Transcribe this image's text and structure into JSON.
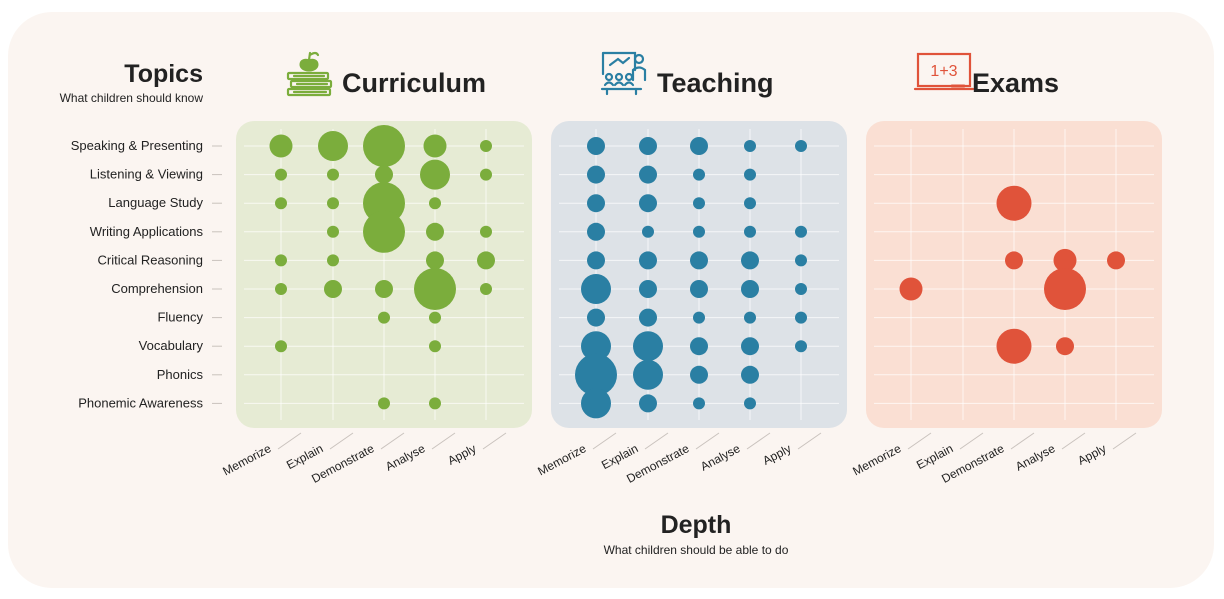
{
  "colors": {
    "background": "#fbf5f1",
    "curriculum_panel": "#e6ebd4",
    "curriculum_dot": "#7bad3c",
    "teaching_panel": "#dde2e7",
    "teaching_dot": "#2a7fa3",
    "exams_panel": "#fadfd3",
    "exams_dot": "#e0533a",
    "text": "#222222",
    "tick_line": "#c9c2bd"
  },
  "y_axis": {
    "title": "Topics",
    "subtitle": "What children should know"
  },
  "x_axis": {
    "title": "Depth",
    "subtitle": "What children should be able to do"
  },
  "chart_data": {
    "type": "scatter",
    "encoding": "bubble size = relative emphasis",
    "categories_y": [
      "Speaking & Presenting",
      "Listening & Viewing",
      "Language Study",
      "Writing Applications",
      "Critical Reasoning",
      "Comprehension",
      "Fluency",
      "Vocabulary",
      "Phonics",
      "Phonemic Awareness"
    ],
    "categories_x": [
      "Memorize",
      "Explain",
      "Demonstrate",
      "Analyse",
      "Apply"
    ],
    "grid": true,
    "panels": [
      {
        "id": "curriculum",
        "title": "Curriculum",
        "icon": "books-apple-icon",
        "sizes": [
          [
            3,
            4,
            6,
            3,
            1
          ],
          [
            1,
            1,
            2,
            4,
            1
          ],
          [
            1,
            1,
            6,
            1,
            0
          ],
          [
            0,
            1,
            6,
            2,
            1
          ],
          [
            1,
            1,
            0,
            2,
            2
          ],
          [
            1,
            2,
            2,
            6,
            1
          ],
          [
            0,
            0,
            1,
            1,
            0
          ],
          [
            1,
            0,
            0,
            1,
            0
          ],
          [
            0,
            0,
            0,
            0,
            0
          ],
          [
            0,
            0,
            1,
            1,
            0
          ]
        ]
      },
      {
        "id": "teaching",
        "title": "Teaching",
        "icon": "classroom-icon",
        "sizes": [
          [
            2,
            2,
            2,
            1,
            1
          ],
          [
            2,
            2,
            1,
            1,
            0
          ],
          [
            2,
            2,
            1,
            1,
            0
          ],
          [
            2,
            1,
            1,
            1,
            1
          ],
          [
            2,
            2,
            2,
            2,
            1
          ],
          [
            4,
            2,
            2,
            2,
            1
          ],
          [
            2,
            2,
            1,
            1,
            1
          ],
          [
            4,
            4,
            2,
            2,
            1
          ],
          [
            6,
            4,
            2,
            2,
            0
          ],
          [
            4,
            2,
            1,
            1,
            0
          ]
        ]
      },
      {
        "id": "exams",
        "title": "Exams",
        "icon": "chalkboard-icon",
        "board_text": "1+3",
        "sizes": [
          [
            0,
            0,
            0,
            0,
            0
          ],
          [
            0,
            0,
            0,
            0,
            0
          ],
          [
            0,
            0,
            5,
            0,
            0
          ],
          [
            0,
            0,
            0,
            0,
            0
          ],
          [
            0,
            0,
            2,
            3,
            2
          ],
          [
            3,
            0,
            0,
            6,
            0
          ],
          [
            0,
            0,
            0,
            0,
            0
          ],
          [
            0,
            0,
            5,
            2,
            0
          ],
          [
            0,
            0,
            0,
            0,
            0
          ],
          [
            0,
            0,
            0,
            0,
            0
          ]
        ]
      }
    ]
  }
}
